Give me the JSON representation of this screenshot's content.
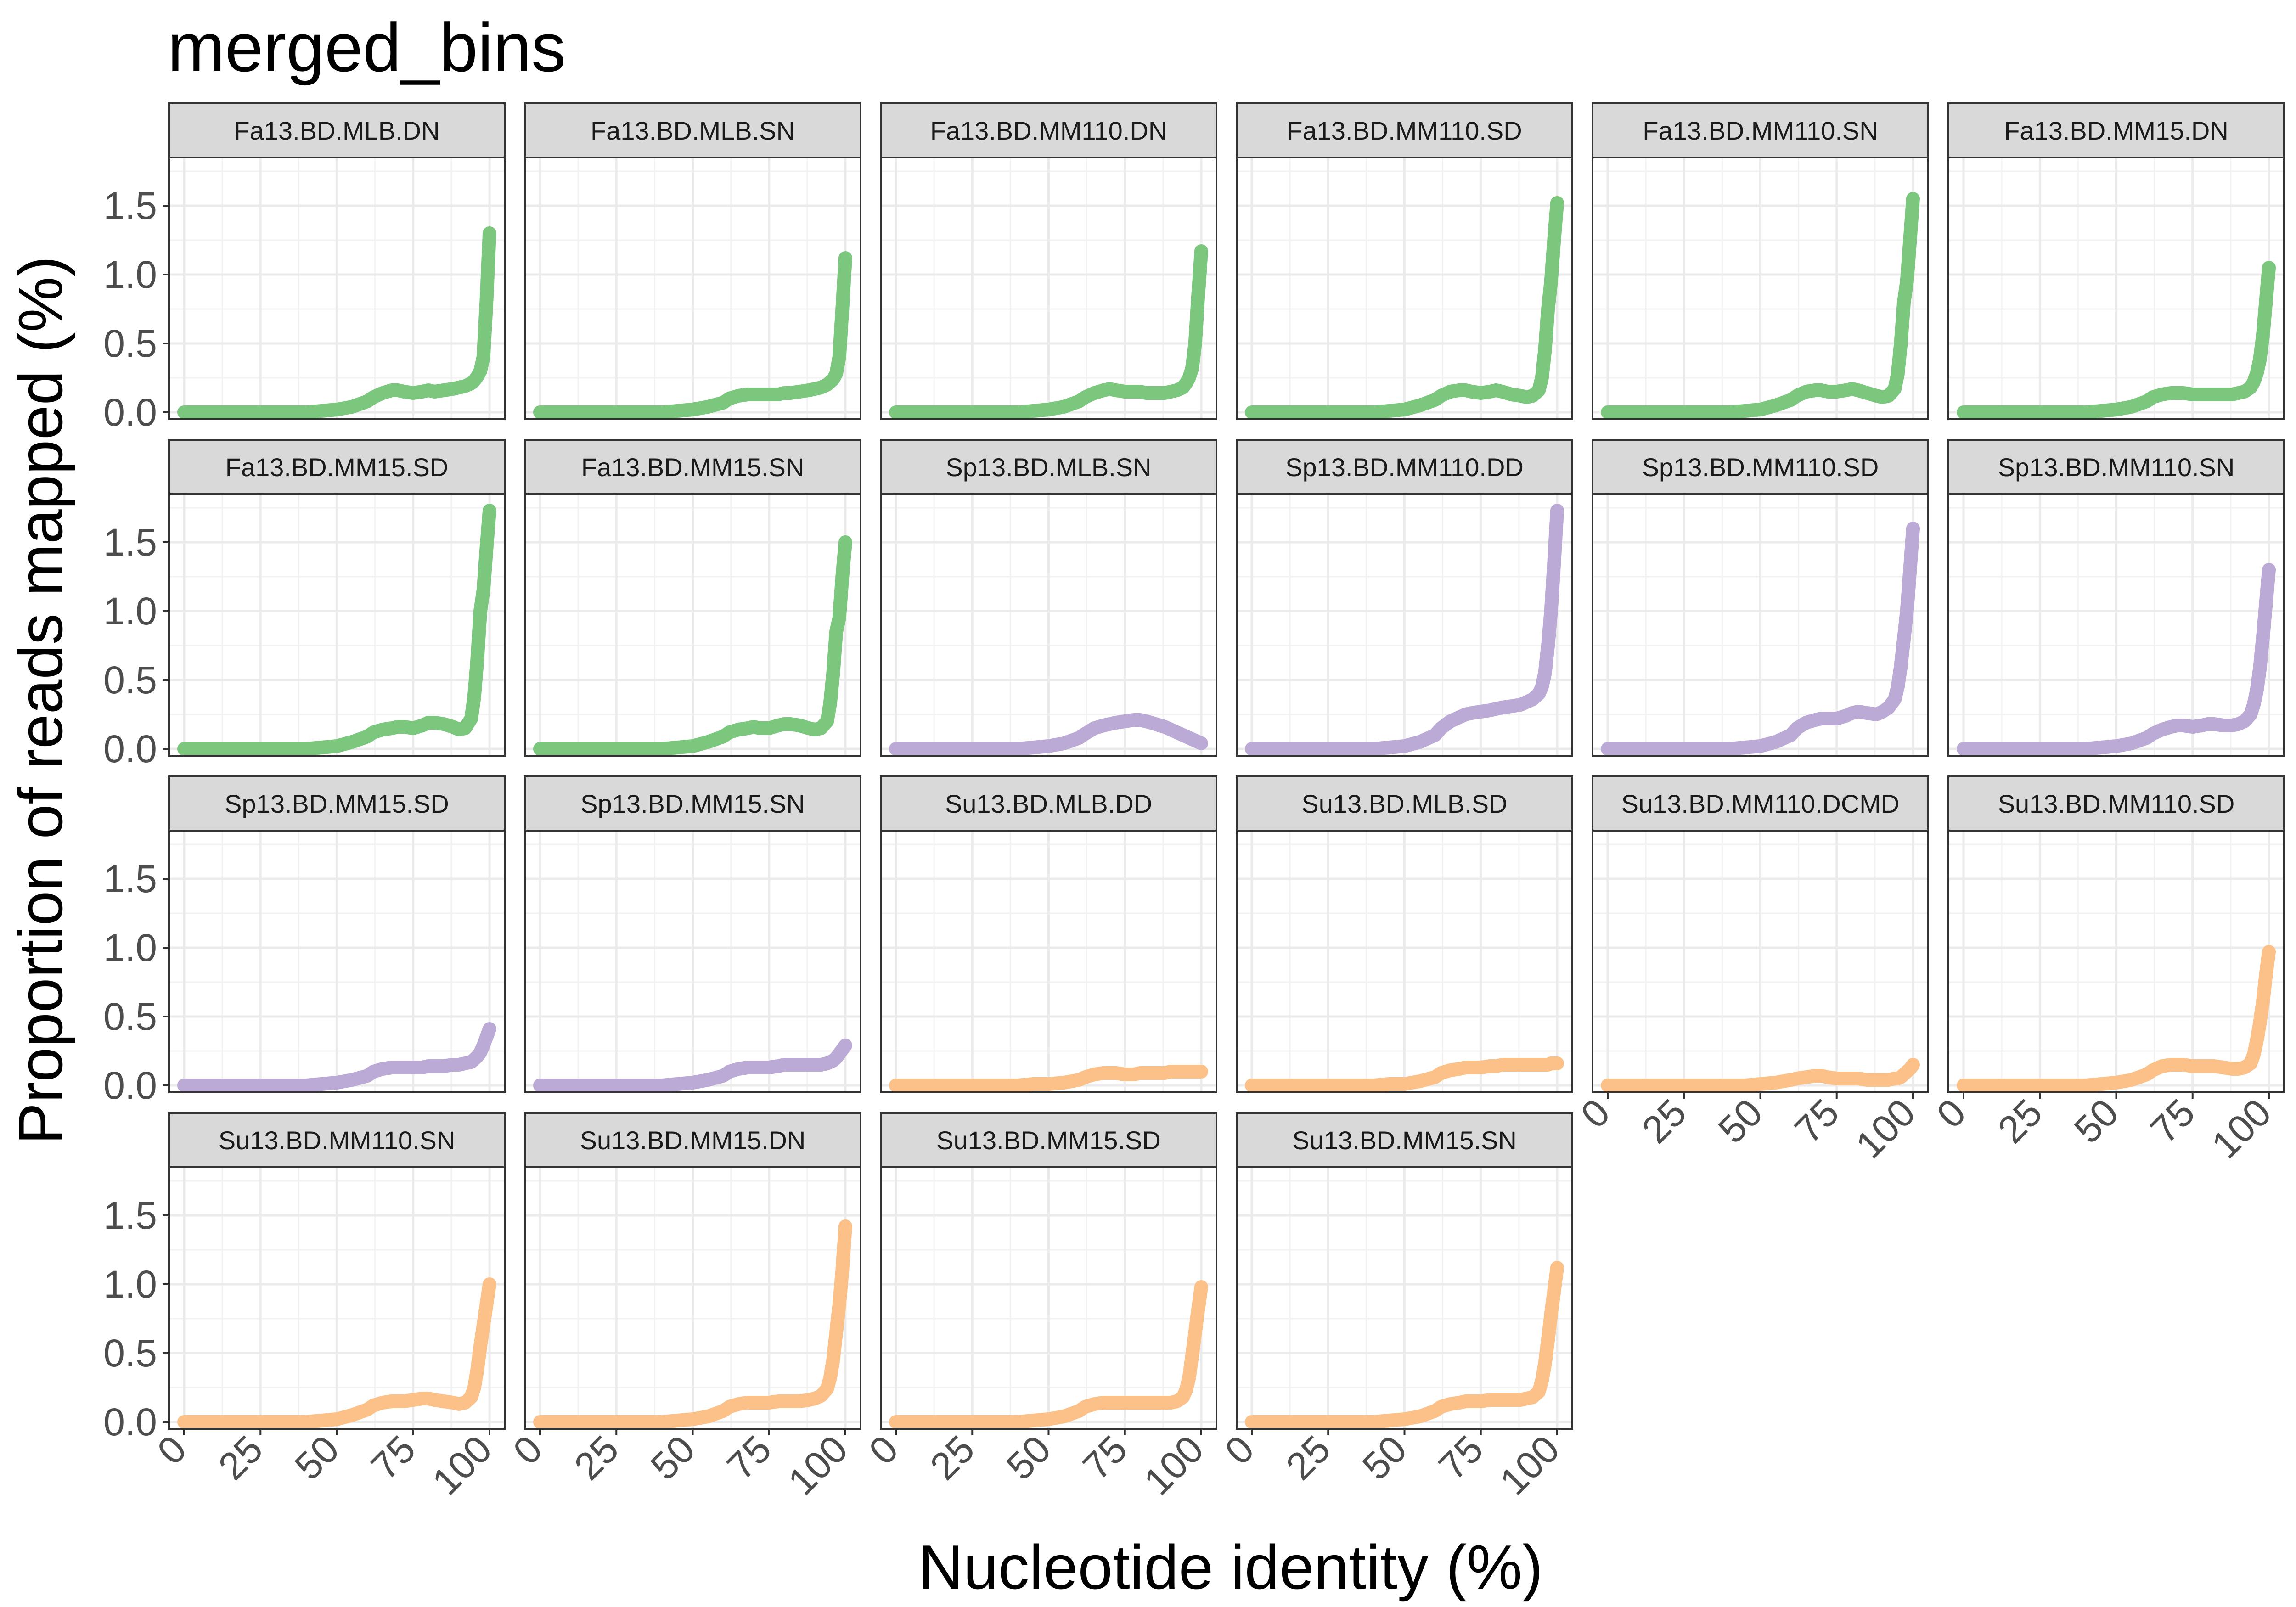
{
  "chart_data": {
    "type": "line",
    "title": "merged_bins",
    "xlabel": "Nucleotide identity (%)",
    "ylabel": "Proportion of reads mapped (%)",
    "xlim": [
      0,
      100
    ],
    "ylim": [
      -0.05,
      1.85
    ],
    "x_ticks": [
      0,
      25,
      50,
      75,
      100
    ],
    "x_tick_labels": [
      "0",
      "25",
      "50",
      "75",
      "100"
    ],
    "y_ticks": [
      0.0,
      0.5,
      1.0,
      1.5
    ],
    "y_tick_labels": [
      "0.0",
      "0.5",
      "1.0",
      "1.5"
    ],
    "grid": true,
    "legend": "none",
    "facet_layout": {
      "columns": 6,
      "rows": 4
    },
    "colors": {
      "Fa13": "#7bc77e",
      "Sp13": "#bcaad6",
      "Su13": "#fcc189",
      "strip": "#d9d9d9",
      "grid": "#ebebeb"
    },
    "x": [
      0,
      5,
      10,
      15,
      20,
      25,
      30,
      35,
      40,
      45,
      50,
      55,
      60,
      62,
      65,
      68,
      70,
      72,
      75,
      78,
      80,
      82,
      85,
      88,
      90,
      92,
      94,
      95,
      96,
      97,
      98,
      99,
      100
    ],
    "panels": [
      {
        "label": "Fa13.BD.MLB.DN",
        "group": "Fa13",
        "values": [
          0,
          0,
          0,
          0,
          0,
          0,
          0,
          0,
          0,
          0.01,
          0.02,
          0.04,
          0.08,
          0.11,
          0.14,
          0.16,
          0.16,
          0.15,
          0.14,
          0.15,
          0.16,
          0.15,
          0.16,
          0.17,
          0.18,
          0.19,
          0.21,
          0.23,
          0.26,
          0.3,
          0.4,
          0.8,
          1.3
        ]
      },
      {
        "label": "Fa13.BD.MLB.SN",
        "group": "Fa13",
        "values": [
          0,
          0,
          0,
          0,
          0,
          0,
          0,
          0,
          0,
          0.01,
          0.02,
          0.04,
          0.07,
          0.1,
          0.12,
          0.13,
          0.13,
          0.13,
          0.13,
          0.13,
          0.14,
          0.14,
          0.15,
          0.16,
          0.17,
          0.18,
          0.2,
          0.22,
          0.24,
          0.28,
          0.4,
          0.75,
          1.12
        ]
      },
      {
        "label": "Fa13.BD.MM110.DN",
        "group": "Fa13",
        "values": [
          0,
          0,
          0,
          0,
          0,
          0,
          0,
          0,
          0,
          0.01,
          0.02,
          0.04,
          0.08,
          0.11,
          0.14,
          0.16,
          0.17,
          0.16,
          0.15,
          0.15,
          0.15,
          0.14,
          0.14,
          0.14,
          0.15,
          0.16,
          0.18,
          0.21,
          0.25,
          0.32,
          0.5,
          0.85,
          1.17
        ]
      },
      {
        "label": "Fa13.BD.MM110.SD",
        "group": "Fa13",
        "values": [
          0,
          0,
          0,
          0,
          0,
          0,
          0,
          0,
          0,
          0.01,
          0.02,
          0.05,
          0.09,
          0.12,
          0.15,
          0.16,
          0.16,
          0.15,
          0.14,
          0.15,
          0.16,
          0.15,
          0.13,
          0.12,
          0.11,
          0.12,
          0.16,
          0.25,
          0.45,
          0.75,
          0.95,
          1.25,
          1.52
        ]
      },
      {
        "label": "Fa13.BD.MM110.SN",
        "group": "Fa13",
        "values": [
          0,
          0,
          0,
          0,
          0,
          0,
          0,
          0,
          0,
          0.01,
          0.02,
          0.05,
          0.09,
          0.12,
          0.15,
          0.16,
          0.16,
          0.15,
          0.15,
          0.16,
          0.17,
          0.16,
          0.14,
          0.12,
          0.11,
          0.12,
          0.17,
          0.28,
          0.5,
          0.8,
          0.95,
          1.25,
          1.55
        ]
      },
      {
        "label": "Fa13.BD.MM15.DN",
        "group": "Fa13",
        "values": [
          0,
          0,
          0,
          0,
          0,
          0,
          0,
          0,
          0,
          0.01,
          0.02,
          0.04,
          0.08,
          0.11,
          0.13,
          0.14,
          0.14,
          0.14,
          0.13,
          0.13,
          0.13,
          0.13,
          0.13,
          0.13,
          0.14,
          0.15,
          0.18,
          0.22,
          0.28,
          0.38,
          0.55,
          0.8,
          1.05
        ]
      },
      {
        "label": "Fa13.BD.MM15.SD",
        "group": "Fa13",
        "values": [
          0,
          0,
          0,
          0,
          0,
          0,
          0,
          0,
          0,
          0.01,
          0.02,
          0.05,
          0.09,
          0.12,
          0.14,
          0.15,
          0.16,
          0.16,
          0.15,
          0.17,
          0.19,
          0.19,
          0.18,
          0.16,
          0.14,
          0.15,
          0.22,
          0.38,
          0.65,
          1.0,
          1.15,
          1.45,
          1.73
        ]
      },
      {
        "label": "Fa13.BD.MM15.SN",
        "group": "Fa13",
        "values": [
          0,
          0,
          0,
          0,
          0,
          0,
          0,
          0,
          0,
          0.01,
          0.02,
          0.05,
          0.09,
          0.12,
          0.14,
          0.15,
          0.16,
          0.15,
          0.15,
          0.17,
          0.18,
          0.18,
          0.17,
          0.15,
          0.14,
          0.15,
          0.2,
          0.33,
          0.55,
          0.85,
          0.95,
          1.25,
          1.5
        ]
      },
      {
        "label": "Sp13.BD.MLB.SN",
        "group": "Sp13",
        "values": [
          0,
          0,
          0,
          0,
          0,
          0,
          0,
          0,
          0,
          0.01,
          0.02,
          0.04,
          0.08,
          0.11,
          0.15,
          0.17,
          0.18,
          0.19,
          0.2,
          0.21,
          0.21,
          0.2,
          0.18,
          0.16,
          0.14,
          0.12,
          0.1,
          0.09,
          0.08,
          0.07,
          0.06,
          0.05,
          0.04
        ]
      },
      {
        "label": "Sp13.BD.MM110.DD",
        "group": "Sp13",
        "values": [
          0,
          0,
          0,
          0,
          0,
          0,
          0,
          0,
          0,
          0.01,
          0.02,
          0.05,
          0.1,
          0.15,
          0.2,
          0.23,
          0.25,
          0.26,
          0.27,
          0.28,
          0.29,
          0.3,
          0.31,
          0.32,
          0.34,
          0.36,
          0.4,
          0.45,
          0.55,
          0.75,
          1.0,
          1.35,
          1.73
        ]
      },
      {
        "label": "Sp13.BD.MM110.SD",
        "group": "Sp13",
        "values": [
          0,
          0,
          0,
          0,
          0,
          0,
          0,
          0,
          0,
          0.01,
          0.02,
          0.05,
          0.1,
          0.15,
          0.19,
          0.21,
          0.22,
          0.22,
          0.22,
          0.24,
          0.26,
          0.27,
          0.26,
          0.25,
          0.27,
          0.3,
          0.36,
          0.45,
          0.6,
          0.8,
          1.0,
          1.3,
          1.6
        ]
      },
      {
        "label": "Sp13.BD.MM110.SN",
        "group": "Sp13",
        "values": [
          0,
          0,
          0,
          0,
          0,
          0,
          0,
          0,
          0,
          0.01,
          0.02,
          0.04,
          0.08,
          0.11,
          0.14,
          0.16,
          0.17,
          0.17,
          0.16,
          0.17,
          0.18,
          0.18,
          0.17,
          0.17,
          0.18,
          0.2,
          0.25,
          0.32,
          0.42,
          0.58,
          0.8,
          1.05,
          1.3
        ]
      },
      {
        "label": "Sp13.BD.MM15.SD",
        "group": "Sp13",
        "values": [
          0,
          0,
          0,
          0,
          0,
          0,
          0,
          0,
          0,
          0.01,
          0.02,
          0.04,
          0.07,
          0.1,
          0.12,
          0.13,
          0.13,
          0.13,
          0.13,
          0.13,
          0.14,
          0.14,
          0.14,
          0.15,
          0.15,
          0.16,
          0.17,
          0.19,
          0.21,
          0.24,
          0.29,
          0.35,
          0.41
        ]
      },
      {
        "label": "Sp13.BD.MM15.SN",
        "group": "Sp13",
        "values": [
          0,
          0,
          0,
          0,
          0,
          0,
          0,
          0,
          0,
          0.01,
          0.02,
          0.04,
          0.07,
          0.1,
          0.12,
          0.13,
          0.13,
          0.13,
          0.13,
          0.14,
          0.15,
          0.15,
          0.15,
          0.15,
          0.15,
          0.15,
          0.16,
          0.17,
          0.18,
          0.2,
          0.23,
          0.26,
          0.29
        ]
      },
      {
        "label": "Su13.BD.MLB.DD",
        "group": "Su13",
        "values": [
          0,
          0,
          0,
          0,
          0,
          0,
          0,
          0,
          0,
          0.01,
          0.01,
          0.02,
          0.04,
          0.06,
          0.08,
          0.09,
          0.09,
          0.09,
          0.08,
          0.08,
          0.09,
          0.09,
          0.09,
          0.09,
          0.1,
          0.1,
          0.1,
          0.1,
          0.1,
          0.1,
          0.1,
          0.1,
          0.1
        ]
      },
      {
        "label": "Su13.BD.MLB.SD",
        "group": "Su13",
        "values": [
          0,
          0,
          0,
          0,
          0,
          0,
          0,
          0,
          0,
          0.01,
          0.01,
          0.03,
          0.06,
          0.09,
          0.11,
          0.12,
          0.13,
          0.13,
          0.13,
          0.14,
          0.14,
          0.15,
          0.15,
          0.15,
          0.15,
          0.15,
          0.15,
          0.15,
          0.15,
          0.15,
          0.16,
          0.16,
          0.16
        ]
      },
      {
        "label": "Su13.BD.MM110.DCMD",
        "group": "Su13",
        "values": [
          0,
          0,
          0,
          0,
          0,
          0,
          0,
          0,
          0,
          0,
          0.01,
          0.02,
          0.04,
          0.05,
          0.06,
          0.07,
          0.07,
          0.06,
          0.05,
          0.05,
          0.05,
          0.05,
          0.04,
          0.04,
          0.04,
          0.04,
          0.05,
          0.05,
          0.06,
          0.08,
          0.1,
          0.12,
          0.15
        ]
      },
      {
        "label": "Su13.BD.MM110.SD",
        "group": "Su13",
        "values": [
          0,
          0,
          0,
          0,
          0,
          0,
          0,
          0,
          0,
          0.01,
          0.02,
          0.04,
          0.08,
          0.11,
          0.14,
          0.15,
          0.15,
          0.15,
          0.14,
          0.14,
          0.14,
          0.14,
          0.13,
          0.12,
          0.12,
          0.13,
          0.16,
          0.22,
          0.32,
          0.45,
          0.6,
          0.8,
          0.97
        ]
      },
      {
        "label": "Su13.BD.MM110.SN",
        "group": "Su13",
        "values": [
          0,
          0,
          0,
          0,
          0,
          0,
          0,
          0,
          0,
          0.01,
          0.02,
          0.05,
          0.09,
          0.12,
          0.14,
          0.15,
          0.15,
          0.15,
          0.16,
          0.17,
          0.17,
          0.16,
          0.15,
          0.14,
          0.13,
          0.14,
          0.18,
          0.25,
          0.38,
          0.55,
          0.7,
          0.85,
          1.0
        ]
      },
      {
        "label": "Su13.BD.MM15.DN",
        "group": "Su13",
        "values": [
          0,
          0,
          0,
          0,
          0,
          0,
          0,
          0,
          0,
          0.01,
          0.02,
          0.04,
          0.08,
          0.11,
          0.13,
          0.14,
          0.14,
          0.14,
          0.14,
          0.15,
          0.15,
          0.15,
          0.15,
          0.16,
          0.17,
          0.19,
          0.24,
          0.32,
          0.45,
          0.65,
          0.85,
          1.1,
          1.42
        ]
      },
      {
        "label": "Su13.BD.MM15.SD",
        "group": "Su13",
        "values": [
          0,
          0,
          0,
          0,
          0,
          0,
          0,
          0,
          0,
          0.01,
          0.02,
          0.04,
          0.08,
          0.11,
          0.13,
          0.14,
          0.14,
          0.14,
          0.14,
          0.14,
          0.14,
          0.14,
          0.14,
          0.14,
          0.14,
          0.15,
          0.18,
          0.23,
          0.32,
          0.48,
          0.65,
          0.82,
          0.98
        ]
      },
      {
        "label": "Su13.BD.MM15.SN",
        "group": "Su13",
        "values": [
          0,
          0,
          0,
          0,
          0,
          0,
          0,
          0,
          0,
          0.01,
          0.02,
          0.04,
          0.08,
          0.11,
          0.13,
          0.14,
          0.15,
          0.15,
          0.15,
          0.16,
          0.16,
          0.16,
          0.16,
          0.16,
          0.17,
          0.18,
          0.22,
          0.3,
          0.42,
          0.6,
          0.78,
          0.95,
          1.12
        ]
      }
    ]
  }
}
